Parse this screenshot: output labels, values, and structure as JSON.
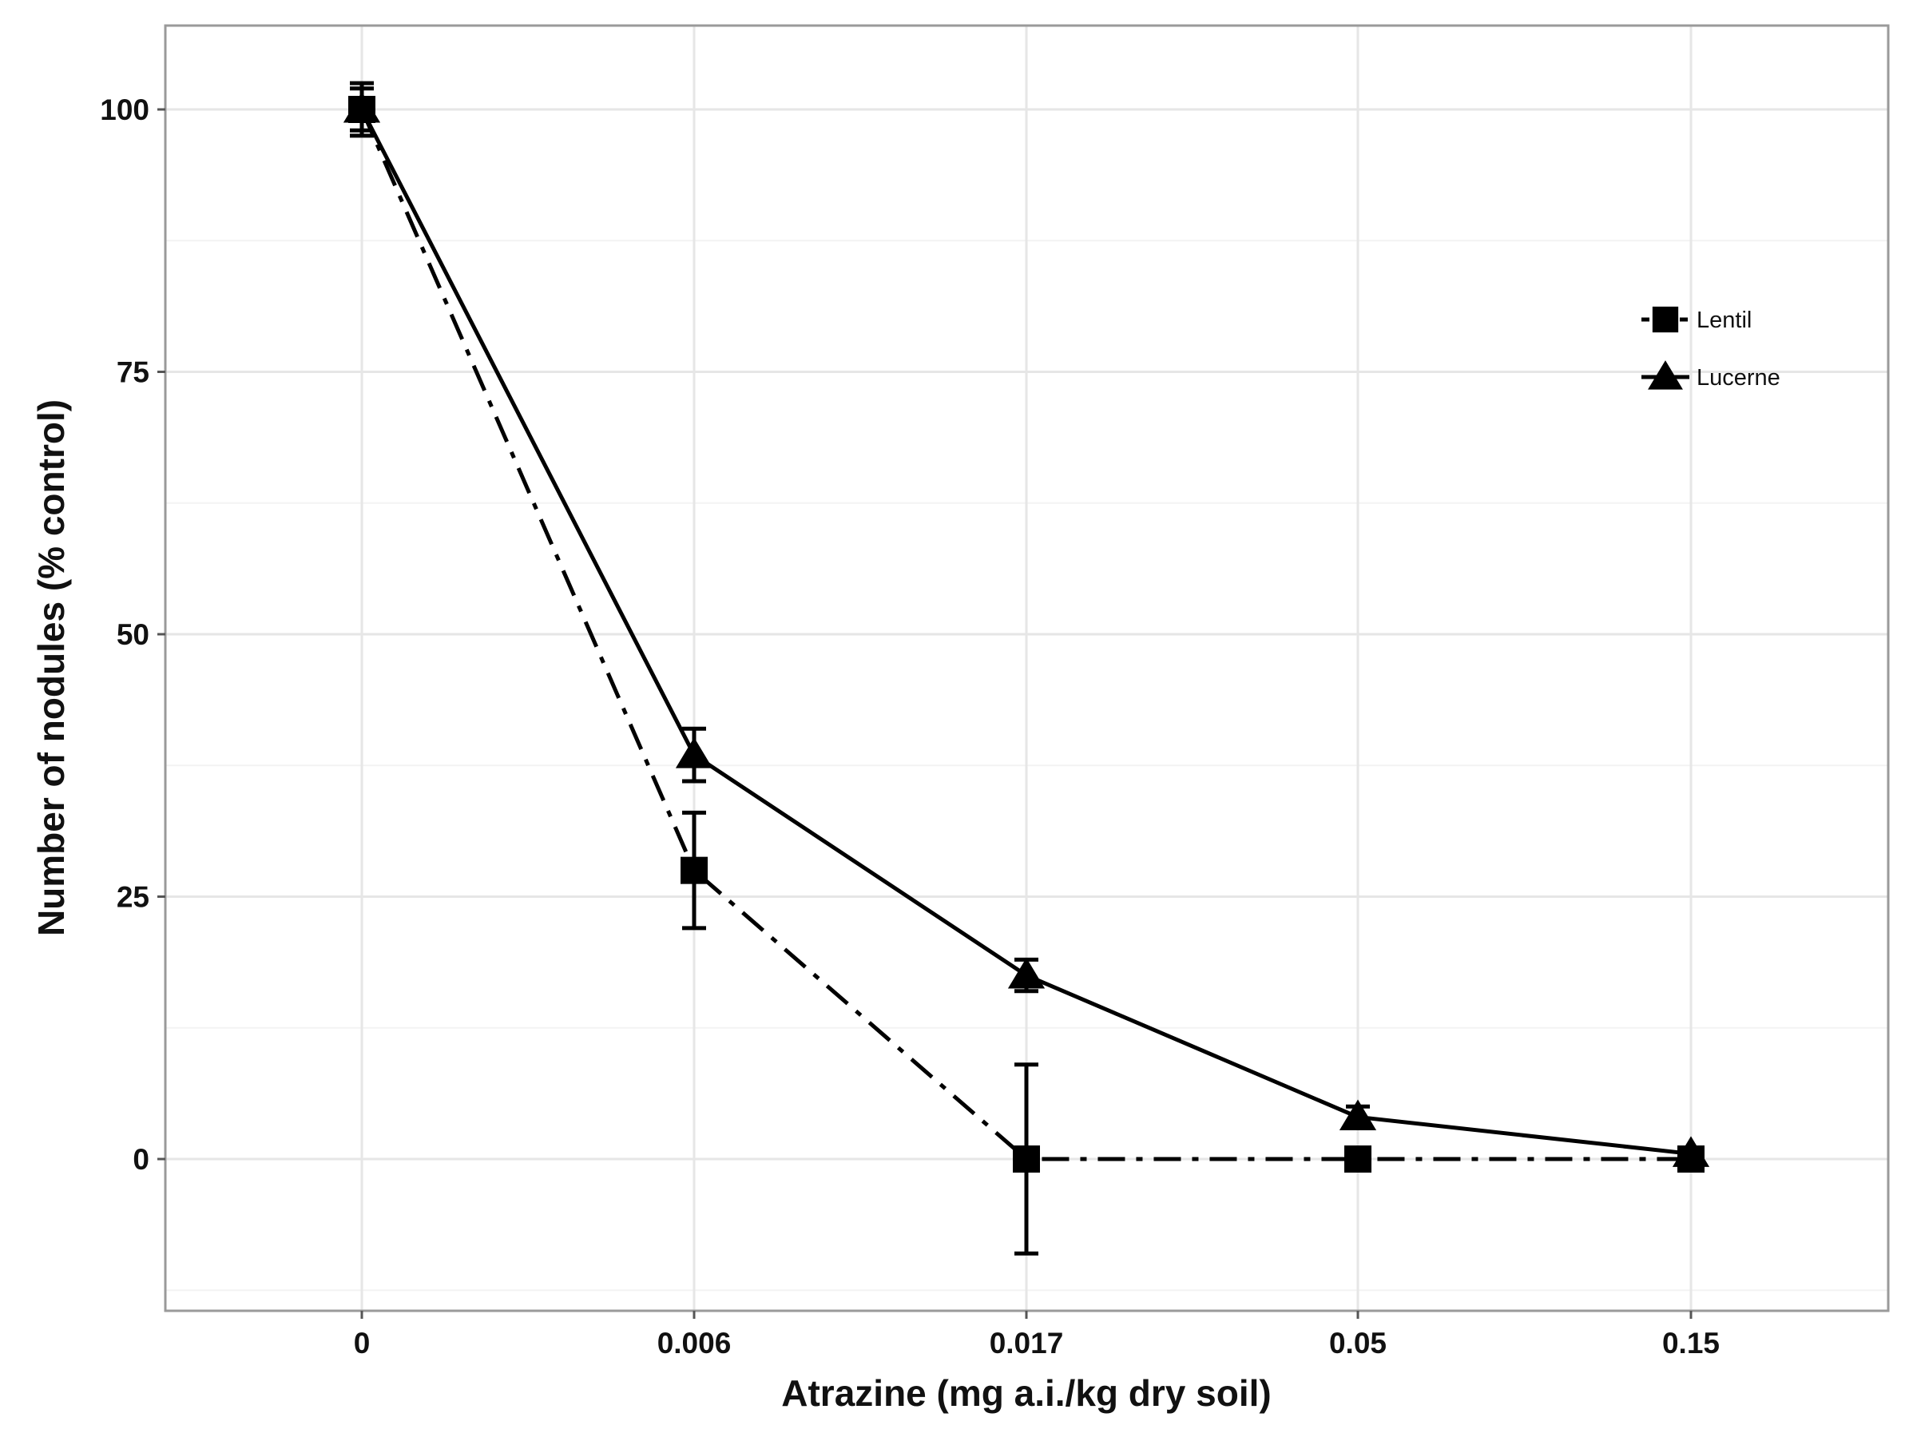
{
  "chart_data": {
    "type": "line",
    "xlabel": "Atrazine (mg a.i./kg dry soil)",
    "ylabel": "Number of nodules (% control)",
    "categories": [
      "0",
      "0.006",
      "0.017",
      "0.05",
      "0.15"
    ],
    "y_ticks": [
      "0",
      "25",
      "50",
      "75",
      "100"
    ],
    "ylim": [
      -14,
      108
    ],
    "grid": true,
    "legend_position": "top-right",
    "series": [
      {
        "name": "Lentil",
        "marker": "square",
        "line_style": "dashdot",
        "values": [
          100,
          27.5,
          0,
          0,
          0
        ],
        "error": [
          2,
          5.5,
          9,
          0,
          0
        ]
      },
      {
        "name": "Lucerne",
        "marker": "triangle",
        "line_style": "solid",
        "values": [
          100,
          38.5,
          17.5,
          4,
          0.5
        ],
        "error": [
          2.5,
          2.5,
          1.5,
          1,
          0.5
        ]
      }
    ]
  }
}
